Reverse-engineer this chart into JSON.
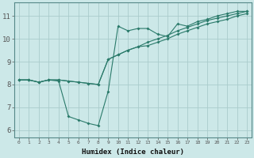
{
  "xlabel": "Humidex (Indice chaleur)",
  "bg_color": "#cce8e8",
  "grid_color": "#aacccc",
  "line_color": "#2a7a6a",
  "xlim": [
    -0.5,
    23.5
  ],
  "ylim": [
    5.7,
    11.6
  ],
  "xticks": [
    0,
    1,
    2,
    3,
    4,
    5,
    6,
    7,
    8,
    9,
    10,
    11,
    12,
    13,
    14,
    15,
    16,
    17,
    18,
    19,
    20,
    21,
    22,
    23
  ],
  "yticks": [
    6,
    7,
    8,
    9,
    10,
    11
  ],
  "line1_x": [
    0,
    1,
    2,
    3,
    4,
    5,
    6,
    7,
    8,
    9,
    10,
    11,
    12,
    13,
    14,
    15,
    16,
    17,
    18,
    19,
    20,
    21,
    22,
    23
  ],
  "line1_y": [
    8.2,
    8.2,
    8.1,
    8.2,
    8.2,
    8.15,
    8.1,
    8.05,
    8.0,
    9.1,
    9.3,
    9.5,
    9.65,
    9.85,
    10.0,
    10.15,
    10.35,
    10.5,
    10.65,
    10.8,
    10.9,
    11.0,
    11.1,
    11.2
  ],
  "line2_x": [
    0,
    1,
    2,
    3,
    4,
    5,
    6,
    7,
    8,
    9,
    10,
    11,
    12,
    13,
    14,
    15,
    16,
    17,
    18,
    19,
    20,
    21,
    22,
    23
  ],
  "line2_y": [
    8.2,
    8.2,
    8.1,
    8.2,
    8.15,
    6.6,
    6.45,
    6.3,
    6.2,
    7.7,
    10.55,
    10.35,
    10.45,
    10.45,
    10.2,
    10.1,
    10.65,
    10.55,
    10.75,
    10.85,
    11.0,
    11.1,
    11.2,
    11.2
  ],
  "line3_x": [
    0,
    1,
    2,
    3,
    4,
    5,
    6,
    7,
    8,
    9,
    10,
    11,
    12,
    13,
    14,
    15,
    16,
    17,
    18,
    19,
    20,
    21,
    22,
    23
  ],
  "line3_y": [
    8.2,
    8.2,
    8.1,
    8.2,
    8.2,
    8.15,
    8.1,
    8.05,
    8.0,
    9.1,
    9.3,
    9.5,
    9.65,
    9.7,
    9.85,
    10.0,
    10.2,
    10.35,
    10.5,
    10.65,
    10.75,
    10.85,
    11.0,
    11.1
  ]
}
